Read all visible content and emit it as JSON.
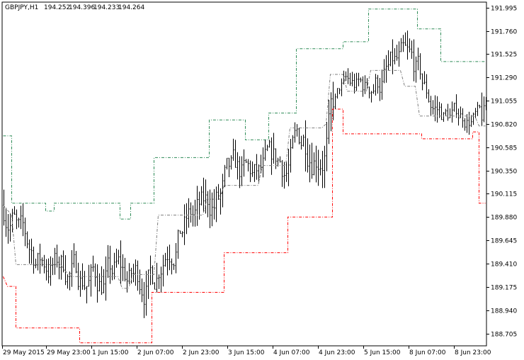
{
  "chart_data": {
    "type": "candlestick",
    "title": "GBPJPY,H1",
    "ohlc": {
      "open": "194.252",
      "high": "194.396",
      "low": "194.233",
      "close": "194.264"
    },
    "x_ticks": [
      "29 May 2015",
      "29 May 23:00",
      "1 Jun 15:00",
      "2 Jun 07:00",
      "2 Jun 23:00",
      "3 Jun 15:00",
      "4 Jun 07:00",
      "4 Jun 23:00",
      "5 Jun 15:00",
      "8 Jun 07:00",
      "8 Jun 23:00"
    ],
    "y_ticks": [
      191.995,
      191.76,
      191.525,
      191.29,
      191.055,
      190.82,
      190.585,
      190.35,
      190.115,
      189.88,
      189.645,
      189.41,
      189.175,
      188.94,
      188.705
    ],
    "ylim": [
      188.58,
      192.05
    ],
    "grid": false,
    "colors": {
      "candles": "#000000",
      "upper_band": "#2e8b57",
      "middle_band": "#808080",
      "lower_band": "#ff0000"
    },
    "bands": {
      "upper": [
        [
          0,
          190.7
        ],
        [
          4,
          190.7
        ],
        [
          4,
          190.02
        ],
        [
          20,
          190.02
        ],
        [
          20,
          189.94
        ],
        [
          24,
          189.94
        ],
        [
          24,
          190.02
        ],
        [
          55,
          190.02
        ],
        [
          55,
          189.86
        ],
        [
          60,
          189.86
        ],
        [
          60,
          190.02
        ],
        [
          71,
          190.02
        ],
        [
          71,
          190.48
        ],
        [
          97,
          190.48
        ],
        [
          97,
          190.86
        ],
        [
          114,
          190.86
        ],
        [
          114,
          190.66
        ],
        [
          125,
          190.66
        ],
        [
          125,
          190.93
        ],
        [
          138,
          190.93
        ],
        [
          138,
          191.58
        ],
        [
          160,
          191.58
        ],
        [
          160,
          191.65
        ],
        [
          172,
          191.65
        ],
        [
          172,
          191.98
        ],
        [
          195,
          191.98
        ],
        [
          195,
          191.78
        ],
        [
          206,
          191.78
        ],
        [
          206,
          191.45
        ],
        [
          227,
          191.45
        ]
      ],
      "middle": [
        [
          0,
          190.0
        ],
        [
          4,
          189.9
        ],
        [
          6,
          189.4
        ],
        [
          27,
          189.4
        ],
        [
          29,
          189.34
        ],
        [
          32,
          189.28
        ],
        [
          54,
          189.28
        ],
        [
          56,
          189.16
        ],
        [
          59,
          189.16
        ],
        [
          61,
          189.3
        ],
        [
          71,
          189.3
        ],
        [
          73,
          189.9
        ],
        [
          94,
          189.9
        ],
        [
          96,
          190.06
        ],
        [
          102,
          190.06
        ],
        [
          104,
          190.2
        ],
        [
          120,
          190.2
        ],
        [
          122,
          190.4
        ],
        [
          133,
          190.4
        ],
        [
          135,
          190.78
        ],
        [
          150,
          190.78
        ],
        [
          152,
          190.82
        ],
        [
          154,
          191.32
        ],
        [
          160,
          191.32
        ],
        [
          162,
          191.15
        ],
        [
          171,
          191.15
        ],
        [
          173,
          191.36
        ],
        [
          187,
          191.36
        ],
        [
          189,
          191.2
        ],
        [
          194,
          191.2
        ],
        [
          196,
          190.9
        ],
        [
          222,
          190.9
        ],
        [
          224,
          190.8
        ],
        [
          227,
          190.8
        ]
      ],
      "lower": [
        [
          0,
          189.28
        ],
        [
          2,
          189.18
        ],
        [
          6,
          189.18
        ],
        [
          6,
          188.76
        ],
        [
          36,
          188.76
        ],
        [
          36,
          188.61
        ],
        [
          70,
          188.61
        ],
        [
          70,
          189.12
        ],
        [
          104,
          189.12
        ],
        [
          104,
          189.52
        ],
        [
          134,
          189.52
        ],
        [
          134,
          189.88
        ],
        [
          155,
          189.88
        ],
        [
          155,
          190.97
        ],
        [
          160,
          190.97
        ],
        [
          160,
          190.72
        ],
        [
          197,
          190.72
        ],
        [
          197,
          190.67
        ],
        [
          221,
          190.67
        ],
        [
          221,
          190.74
        ],
        [
          224,
          190.74
        ],
        [
          224,
          190.02
        ],
        [
          227,
          190.02
        ]
      ]
    }
  }
}
